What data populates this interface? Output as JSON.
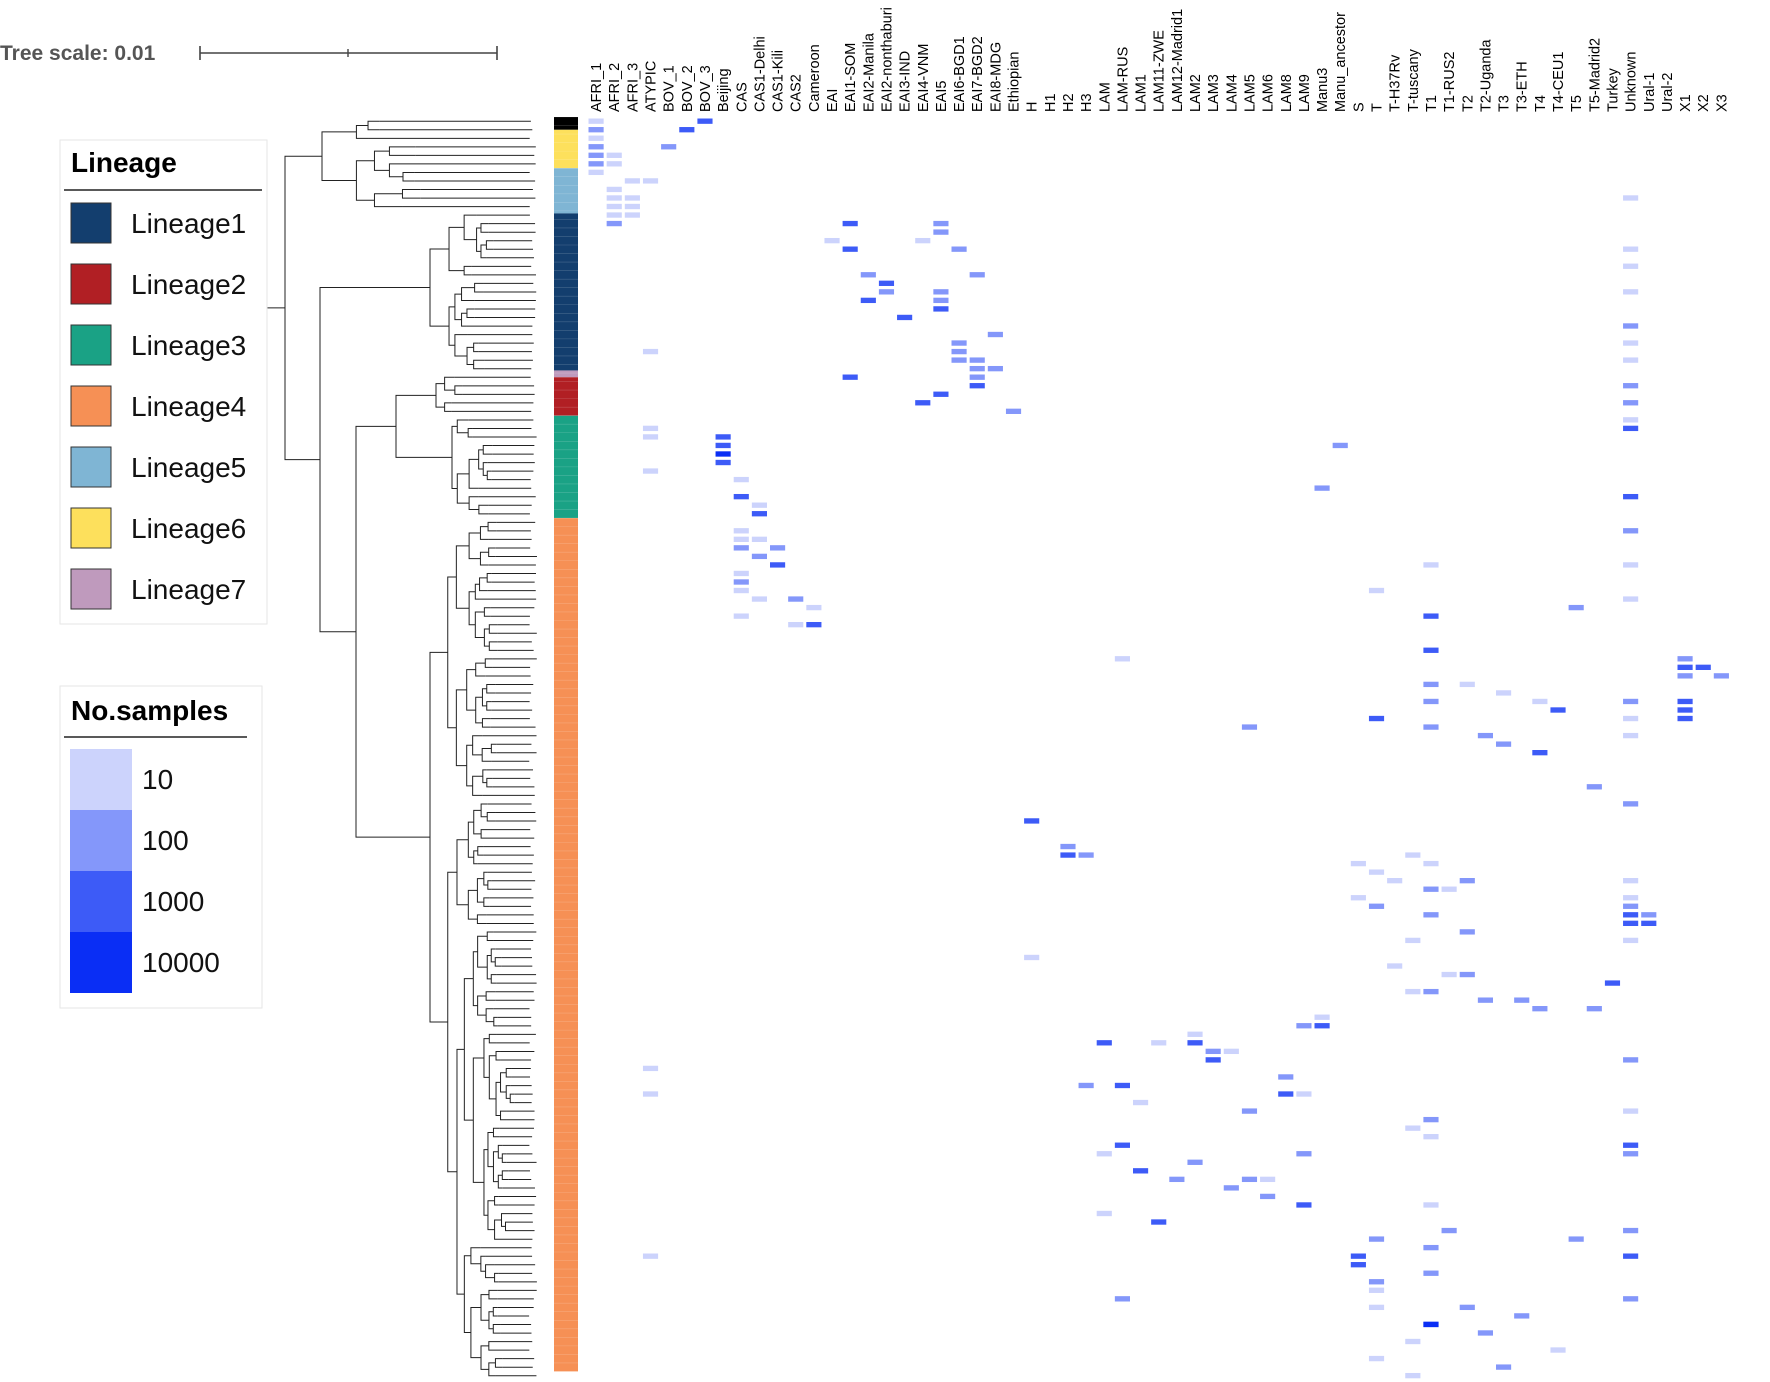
{
  "tree_scale": {
    "label": "Tree scale: 0.01"
  },
  "lineage_legend": {
    "title": "Lineage",
    "items": [
      {
        "label": "Lineage1",
        "color": "#133e6e"
      },
      {
        "label": "Lineage2",
        "color": "#b11f24"
      },
      {
        "label": "Lineage3",
        "color": "#1aa285"
      },
      {
        "label": "Lineage4",
        "color": "#f69055"
      },
      {
        "label": "Lineage5",
        "color": "#7fb5d4"
      },
      {
        "label": "Lineage6",
        "color": "#fde05c"
      },
      {
        "label": "Lineage7",
        "color": "#bf9abd"
      }
    ]
  },
  "samples_legend": {
    "title": "No.samples",
    "items": [
      {
        "label": "10",
        "color": "#ccd3fc"
      },
      {
        "label": "100",
        "color": "#8497fa"
      },
      {
        "label": "1000",
        "color": "#3d5bf7"
      },
      {
        "label": "10000",
        "color": "#0a2ef5"
      }
    ]
  },
  "columns": [
    "AFRI_1",
    "AFRI_2",
    "AFRI_3",
    "ATYPIC",
    "BOV_1",
    "BOV_2",
    "BOV_3",
    "Beijing",
    "CAS",
    "CAS1-Delhi",
    "CAS1-Kili",
    "CAS2",
    "Cameroon",
    "EAI",
    "EAI1-SOM",
    "EAI2-Manila",
    "EAI2-nonthaburi",
    "EAI3-IND",
    "EAI4-VNM",
    "EAI5",
    "EAI6-BGD1",
    "EAI7-BGD2",
    "EAI8-MDG",
    "Ethiopian",
    "H",
    "H1",
    "H2",
    "H3",
    "LAM",
    "LAM-RUS",
    "LAM1",
    "LAM11-ZWE",
    "LAM12-Madrid1",
    "LAM2",
    "LAM3",
    "LAM4",
    "LAM5",
    "LAM6",
    "LAM8",
    "LAM9",
    "Manu3",
    "Manu_ancestor",
    "S",
    "T",
    "T-H37Rv",
    "T-tuscany",
    "T1",
    "T1-RUS2",
    "T2",
    "T2-Uganda",
    "T3",
    "T3-ETH",
    "T4",
    "T4-CEU1",
    "T5",
    "T5-Madrid2",
    "Turkey",
    "Unknown",
    "Ural-1",
    "Ural-2",
    "X1",
    "X2",
    "X3"
  ],
  "lineage_bar": [
    {
      "lineage": "Lineage7",
      "from": 0.0,
      "to": 1.5,
      "color": "#000000"
    },
    {
      "lineage": "Lineage6",
      "from": 1.5,
      "to": 6.0,
      "color": "#fde05c"
    },
    {
      "lineage": "Lineage5",
      "from": 6.0,
      "to": 11.3,
      "color": "#7fb5d4"
    },
    {
      "lineage": "Lineage1",
      "from": 11.3,
      "to": 29.7,
      "color": "#133e6e"
    },
    {
      "lineage": "Lineage7",
      "from": 29.7,
      "to": 30.5,
      "color": "#bf9abd"
    },
    {
      "lineage": "Lineage2",
      "from": 30.5,
      "to": 35.0,
      "color": "#b11f24"
    },
    {
      "lineage": "Lineage3",
      "from": 35.0,
      "to": 47.0,
      "color": "#1aa285"
    },
    {
      "lineage": "Lineage4",
      "from": 47.0,
      "to": 147.0,
      "color": "#f69055"
    }
  ],
  "heatmap_cells": [
    [
      0,
      0,
      1
    ],
    [
      1,
      0,
      2
    ],
    [
      2,
      0,
      1
    ],
    [
      3,
      0,
      2
    ],
    [
      4,
      0,
      2
    ],
    [
      5,
      0,
      2
    ],
    [
      6,
      0,
      1
    ],
    [
      4,
      1,
      1
    ],
    [
      5,
      1,
      1
    ],
    [
      7,
      2,
      1
    ],
    [
      8,
      1,
      1
    ],
    [
      9,
      1,
      1
    ],
    [
      10,
      1,
      1
    ],
    [
      10,
      2,
      1
    ],
    [
      11,
      1,
      1
    ],
    [
      11,
      2,
      1
    ],
    [
      12,
      1,
      2
    ],
    [
      3,
      4,
      2
    ],
    [
      1,
      5,
      3
    ],
    [
      0,
      6,
      3
    ],
    [
      7,
      3,
      1
    ],
    [
      9,
      2,
      1
    ],
    [
      9,
      57,
      1
    ],
    [
      12,
      14,
      3
    ],
    [
      14,
      13,
      1
    ],
    [
      15,
      14,
      3
    ],
    [
      18,
      15,
      2
    ],
    [
      19,
      16,
      3
    ],
    [
      21,
      15,
      3
    ],
    [
      23,
      17,
      3
    ],
    [
      20,
      16,
      2
    ],
    [
      13,
      19,
      2
    ],
    [
      12,
      19,
      2
    ],
    [
      14,
      18,
      1
    ],
    [
      15,
      20,
      2
    ],
    [
      20,
      19,
      2
    ],
    [
      21,
      19,
      2
    ],
    [
      22,
      19,
      3
    ],
    [
      18,
      21,
      2
    ],
    [
      25,
      22,
      2
    ],
    [
      26,
      20,
      2
    ],
    [
      27,
      20,
      2
    ],
    [
      28,
      20,
      2
    ],
    [
      28,
      21,
      2
    ],
    [
      29,
      21,
      2
    ],
    [
      30,
      21,
      2
    ],
    [
      29,
      22,
      2
    ],
    [
      27,
      3,
      1
    ],
    [
      30,
      14,
      3
    ],
    [
      31,
      21,
      3
    ],
    [
      32,
      19,
      3
    ],
    [
      33,
      18,
      3
    ],
    [
      34,
      23,
      2
    ],
    [
      15,
      57,
      1
    ],
    [
      17,
      57,
      1
    ],
    [
      20,
      57,
      1
    ],
    [
      24,
      57,
      2
    ],
    [
      26,
      57,
      1
    ],
    [
      28,
      57,
      1
    ],
    [
      31,
      57,
      2
    ],
    [
      33,
      57,
      2
    ],
    [
      35,
      57,
      1
    ],
    [
      36,
      57,
      3
    ],
    [
      38,
      41,
      2
    ],
    [
      43,
      40,
      2
    ],
    [
      36,
      3,
      1
    ],
    [
      37,
      3,
      1
    ],
    [
      41,
      3,
      1
    ],
    [
      37,
      7,
      3
    ],
    [
      38,
      7,
      3
    ],
    [
      39,
      7,
      4
    ],
    [
      40,
      7,
      3
    ],
    [
      42,
      8,
      1
    ],
    [
      44,
      8,
      3
    ],
    [
      45,
      9,
      1
    ],
    [
      46,
      9,
      3
    ],
    [
      49,
      8,
      1
    ],
    [
      50,
      8,
      2
    ],
    [
      51,
      9,
      2
    ],
    [
      52,
      10,
      3
    ],
    [
      48,
      8,
      1
    ],
    [
      49,
      9,
      1
    ],
    [
      50,
      10,
      2
    ],
    [
      53,
      8,
      1
    ],
    [
      54,
      8,
      2
    ],
    [
      55,
      8,
      1
    ],
    [
      56,
      9,
      1
    ],
    [
      57,
      12,
      1
    ],
    [
      56,
      11,
      2
    ],
    [
      59,
      12,
      3
    ],
    [
      59,
      11,
      1
    ],
    [
      58,
      8,
      1
    ],
    [
      44,
      57,
      3
    ],
    [
      48,
      57,
      2
    ],
    [
      52,
      57,
      1
    ],
    [
      56,
      57,
      1
    ],
    [
      52,
      46,
      1
    ],
    [
      55,
      43,
      1
    ],
    [
      57,
      54,
      2
    ],
    [
      58,
      46,
      3
    ],
    [
      62,
      46,
      3
    ],
    [
      66,
      46,
      2
    ],
    [
      68,
      46,
      2
    ],
    [
      70,
      43,
      3
    ],
    [
      70,
      57,
      1
    ],
    [
      63,
      60,
      2
    ],
    [
      64,
      60,
      3
    ],
    [
      64,
      61,
      3
    ],
    [
      65,
      60,
      2
    ],
    [
      65,
      62,
      2
    ],
    [
      68,
      60,
      3
    ],
    [
      69,
      60,
      3
    ],
    [
      70,
      60,
      3
    ],
    [
      68,
      57,
      2
    ],
    [
      72,
      57,
      1
    ],
    [
      66,
      48,
      1
    ],
    [
      67,
      50,
      1
    ],
    [
      68,
      52,
      1
    ],
    [
      69,
      53,
      3
    ],
    [
      72,
      49,
      2
    ],
    [
      73,
      50,
      2
    ],
    [
      74,
      52,
      3
    ],
    [
      71,
      36,
      2
    ],
    [
      71,
      46,
      2
    ],
    [
      63,
      29,
      1
    ],
    [
      78,
      55,
      2
    ],
    [
      80,
      57,
      2
    ],
    [
      82,
      24,
      3
    ],
    [
      85,
      26,
      2
    ],
    [
      86,
      27,
      2
    ],
    [
      86,
      26,
      3
    ],
    [
      86,
      45,
      1
    ],
    [
      87,
      42,
      1
    ],
    [
      87,
      46,
      1
    ],
    [
      88,
      43,
      1
    ],
    [
      89,
      44,
      1
    ],
    [
      89,
      48,
      2
    ],
    [
      90,
      46,
      2
    ],
    [
      90,
      47,
      1
    ],
    [
      91,
      42,
      1
    ],
    [
      92,
      43,
      2
    ],
    [
      93,
      46,
      2
    ],
    [
      89,
      57,
      1
    ],
    [
      91,
      57,
      1
    ],
    [
      92,
      57,
      2
    ],
    [
      93,
      58,
      2
    ],
    [
      93,
      57,
      3
    ],
    [
      94,
      57,
      3
    ],
    [
      94,
      58,
      3
    ],
    [
      96,
      57,
      1
    ],
    [
      96,
      45,
      1
    ],
    [
      98,
      24,
      1
    ],
    [
      95,
      48,
      2
    ],
    [
      100,
      48,
      2
    ],
    [
      100,
      47,
      1
    ],
    [
      101,
      56,
      3
    ],
    [
      102,
      46,
      2
    ],
    [
      103,
      49,
      2
    ],
    [
      103,
      51,
      2
    ],
    [
      104,
      52,
      2
    ],
    [
      104,
      55,
      2
    ],
    [
      99,
      44,
      1
    ],
    [
      102,
      45,
      1
    ],
    [
      105,
      40,
      1
    ],
    [
      106,
      39,
      2
    ],
    [
      106,
      40,
      3
    ],
    [
      107,
      33,
      1
    ],
    [
      108,
      33,
      3
    ],
    [
      108,
      31,
      1
    ],
    [
      109,
      34,
      2
    ],
    [
      109,
      35,
      1
    ],
    [
      110,
      34,
      3
    ],
    [
      108,
      28,
      3
    ],
    [
      110,
      57,
      2
    ],
    [
      111,
      3,
      1
    ],
    [
      112,
      38,
      2
    ],
    [
      113,
      27,
      2
    ],
    [
      113,
      29,
      3
    ],
    [
      114,
      38,
      3
    ],
    [
      114,
      39,
      1
    ],
    [
      115,
      30,
      1
    ],
    [
      116,
      36,
      2
    ],
    [
      117,
      46,
      2
    ],
    [
      118,
      45,
      1
    ],
    [
      119,
      46,
      1
    ],
    [
      120,
      29,
      3
    ],
    [
      120,
      57,
      3
    ],
    [
      121,
      39,
      2
    ],
    [
      121,
      28,
      1
    ],
    [
      122,
      33,
      2
    ],
    [
      123,
      30,
      3
    ],
    [
      124,
      36,
      2
    ],
    [
      124,
      32,
      2
    ],
    [
      125,
      35,
      2
    ],
    [
      126,
      37,
      2
    ],
    [
      127,
      39,
      3
    ],
    [
      128,
      28,
      1
    ],
    [
      129,
      31,
      3
    ],
    [
      114,
      3,
      1
    ],
    [
      116,
      57,
      1
    ],
    [
      121,
      57,
      2
    ],
    [
      124,
      37,
      1
    ],
    [
      127,
      46,
      1
    ],
    [
      130,
      47,
      2
    ],
    [
      130,
      57,
      2
    ],
    [
      131,
      43,
      2
    ],
    [
      131,
      54,
      2
    ],
    [
      132,
      46,
      2
    ],
    [
      133,
      42,
      3
    ],
    [
      134,
      42,
      3
    ],
    [
      133,
      3,
      1
    ],
    [
      133,
      57,
      3
    ],
    [
      135,
      46,
      2
    ],
    [
      136,
      43,
      2
    ],
    [
      137,
      43,
      1
    ],
    [
      138,
      29,
      2
    ],
    [
      139,
      43,
      1
    ],
    [
      138,
      57,
      2
    ],
    [
      139,
      48,
      2
    ],
    [
      140,
      51,
      2
    ],
    [
      141,
      46,
      3
    ],
    [
      141,
      46,
      4
    ],
    [
      142,
      49,
      2
    ],
    [
      143,
      45,
      1
    ],
    [
      144,
      53,
      1
    ],
    [
      145,
      43,
      1
    ],
    [
      146,
      50,
      2
    ],
    [
      147,
      45,
      1
    ]
  ]
}
